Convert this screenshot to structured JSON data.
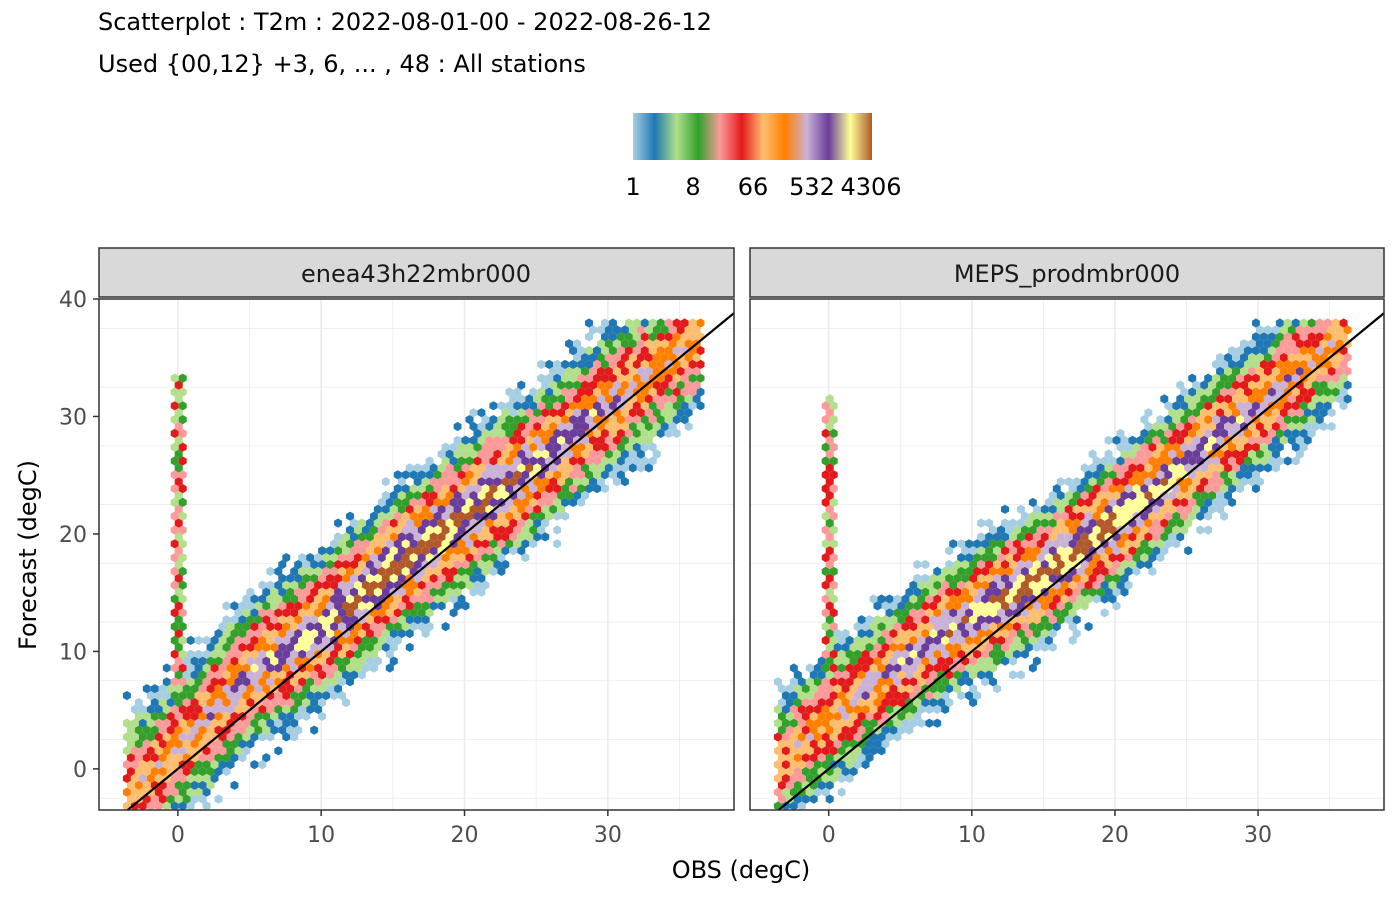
{
  "title": "Scatterplot : T2m : 2022-08-01-00 - 2022-08-26-12",
  "subtitle": "Used {00,12} +3, 6, ... , 48 : All stations",
  "colors": {
    "background": "#ffffff",
    "panel_border": "#333333",
    "strip_fill": "#d9d9d9",
    "grid": "#ebebeb",
    "axis_text": "#4d4d4d",
    "diagonal": "#000000",
    "legend_palette": [
      "#a6cee3",
      "#1f78b4",
      "#b2df8a",
      "#33a02c",
      "#fb9a99",
      "#e31a1c",
      "#fdbf6f",
      "#ff7f00",
      "#cab2d6",
      "#6a3d9a",
      "#ffff99",
      "#b15928"
    ]
  },
  "legend": {
    "type": "colorbar",
    "placement": "top",
    "labels": [
      "1",
      "8",
      "66",
      "532",
      "4306"
    ]
  },
  "chart_data": [
    {
      "type": "heatmap",
      "subtype": "hexbin",
      "panel": "enea43h22mbr000",
      "xlabel": "OBS (degC)",
      "ylabel": "Forecast (degC)",
      "xlim": [
        -5.5,
        38.8
      ],
      "ylim": [
        -3.5,
        40.0
      ],
      "xticks": [
        0,
        10,
        20,
        30
      ],
      "yticks": [
        0,
        10,
        20,
        30,
        40
      ],
      "grid": true,
      "reference_line": "y = x",
      "density_ridge": [
        [
          -3,
          -1.5
        ],
        [
          1,
          3
        ],
        [
          5,
          8
        ],
        [
          10,
          12
        ],
        [
          15,
          17
        ],
        [
          20,
          21.5
        ],
        [
          25,
          26
        ],
        [
          30,
          31
        ],
        [
          35,
          35.5
        ]
      ],
      "ridge_width": 3.0,
      "x_range": [
        -3.8,
        36.5
      ],
      "spike": {
        "x": 0,
        "y_range": [
          0,
          33.5
        ]
      }
    },
    {
      "type": "heatmap",
      "subtype": "hexbin",
      "panel": "MEPS_prodmbr000",
      "xlabel": "OBS (degC)",
      "ylabel": "Forecast (degC)",
      "xlim": [
        -5.5,
        38.8
      ],
      "ylim": [
        -3.5,
        40.0
      ],
      "xticks": [
        0,
        10,
        20,
        30
      ],
      "yticks": [
        0,
        10,
        20,
        30,
        40
      ],
      "grid": true,
      "reference_line": "y = x",
      "density_ridge": [
        [
          -3,
          1
        ],
        [
          2,
          6
        ],
        [
          5,
          9
        ],
        [
          10,
          13
        ],
        [
          15,
          16.5
        ],
        [
          20,
          21
        ],
        [
          25,
          26
        ],
        [
          30,
          31
        ],
        [
          36,
          37
        ]
      ],
      "ridge_width": 2.7,
      "x_range": [
        -3.8,
        36.5
      ],
      "spike": {
        "x": 0,
        "y_range": [
          1,
          31.5
        ]
      }
    }
  ]
}
